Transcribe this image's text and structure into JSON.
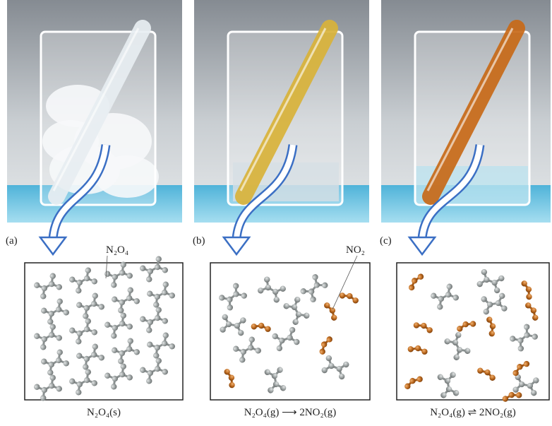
{
  "panels": [
    {
      "label": "(a)",
      "molecule_label": "N₂O₄",
      "caption": "N₂O₄(s)"
    },
    {
      "label": "(b)",
      "molecule_label": "NO₂",
      "caption": "N₂O₄(g) ⟶ 2NO₂(g)"
    },
    {
      "label": "(c)",
      "caption": "N₂O₄(g) ⇌ 2NO₂(g)"
    }
  ]
}
